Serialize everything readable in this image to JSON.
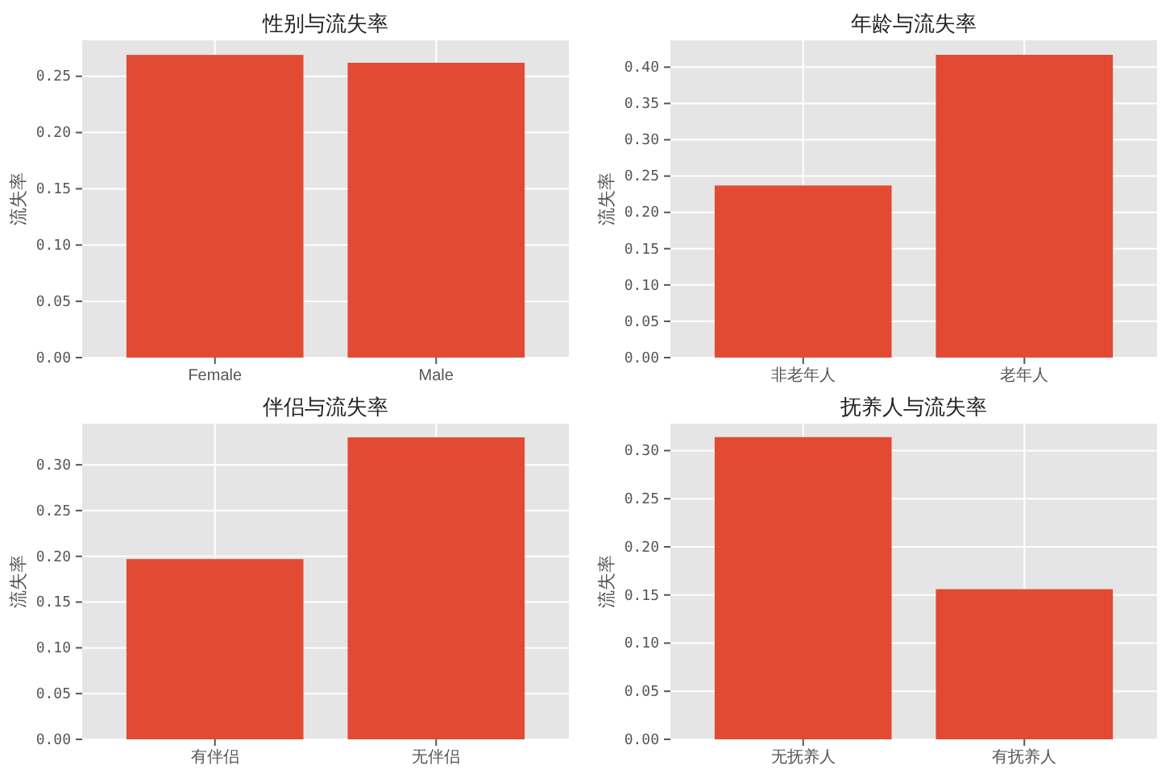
{
  "chart_data": [
    {
      "type": "bar",
      "title": "性别与流失率",
      "ylabel": "流失率",
      "categories": [
        "Female",
        "Male"
      ],
      "values": [
        0.269,
        0.262
      ],
      "color": "#e24a33",
      "ylim": [
        0,
        0.282
      ],
      "yticks": [
        {
          "value": 0,
          "label": "0.00"
        },
        {
          "value": 0.05,
          "label": "0.05"
        },
        {
          "value": 0.1,
          "label": "0.10"
        },
        {
          "value": 0.15,
          "label": "0.15"
        },
        {
          "value": 0.2,
          "label": "0.20"
        },
        {
          "value": 0.25,
          "label": "0.25"
        }
      ],
      "grid": true
    },
    {
      "type": "bar",
      "title": "年龄与流失率",
      "ylabel": "流失率",
      "categories": [
        "非老年人",
        "老年人"
      ],
      "values": [
        0.237,
        0.417
      ],
      "color": "#e24a33",
      "ylim": [
        0,
        0.437
      ],
      "yticks": [
        {
          "value": 0,
          "label": "0.00"
        },
        {
          "value": 0.05,
          "label": "0.05"
        },
        {
          "value": 0.1,
          "label": "0.10"
        },
        {
          "value": 0.15,
          "label": "0.15"
        },
        {
          "value": 0.2,
          "label": "0.20"
        },
        {
          "value": 0.25,
          "label": "0.25"
        },
        {
          "value": 0.3,
          "label": "0.30"
        },
        {
          "value": 0.35,
          "label": "0.35"
        },
        {
          "value": 0.4,
          "label": "0.40"
        }
      ],
      "grid": true
    },
    {
      "type": "bar",
      "title": "伴侣与流失率",
      "ylabel": "流失率",
      "categories": [
        "有伴侣",
        "无伴侣"
      ],
      "values": [
        0.197,
        0.33
      ],
      "color": "#e24a33",
      "ylim": [
        0,
        0.345
      ],
      "yticks": [
        {
          "value": 0,
          "label": "0.00"
        },
        {
          "value": 0.05,
          "label": "0.05"
        },
        {
          "value": 0.1,
          "label": "0.10"
        },
        {
          "value": 0.15,
          "label": "0.15"
        },
        {
          "value": 0.2,
          "label": "0.20"
        },
        {
          "value": 0.25,
          "label": "0.25"
        },
        {
          "value": 0.3,
          "label": "0.30"
        }
      ],
      "grid": true
    },
    {
      "type": "bar",
      "title": "抚养人与流失率",
      "ylabel": "流失率",
      "categories": [
        "无抚养人",
        "有抚养人"
      ],
      "values": [
        0.314,
        0.156
      ],
      "color": "#e24a33",
      "ylim": [
        0,
        0.328
      ],
      "yticks": [
        {
          "value": 0,
          "label": "0.00"
        },
        {
          "value": 0.05,
          "label": "0.05"
        },
        {
          "value": 0.1,
          "label": "0.10"
        },
        {
          "value": 0.15,
          "label": "0.15"
        },
        {
          "value": 0.2,
          "label": "0.20"
        },
        {
          "value": 0.25,
          "label": "0.25"
        },
        {
          "value": 0.3,
          "label": "0.30"
        }
      ],
      "grid": true
    }
  ]
}
